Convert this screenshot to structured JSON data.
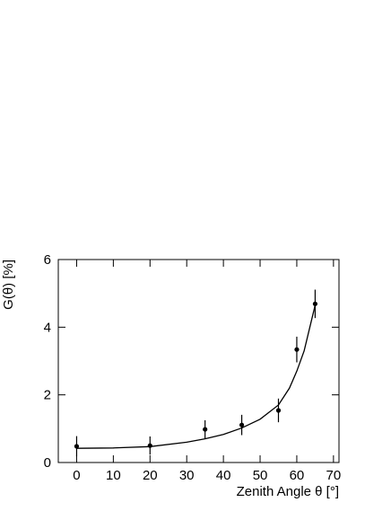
{
  "chart_data": {
    "type": "scatter",
    "xlabel": "Zenith Angle θ [°]",
    "ylabel": "G(θ) [%]",
    "x": [
      0,
      20,
      35,
      45,
      55,
      60,
      65
    ],
    "values": [
      0.48,
      0.5,
      0.98,
      1.11,
      1.54,
      3.34,
      4.69
    ],
    "errors": [
      0.3,
      0.27,
      0.27,
      0.3,
      0.35,
      0.38,
      0.42
    ],
    "color": "#000000",
    "fit": {
      "x": [
        0,
        10,
        20,
        30,
        35,
        40,
        45,
        50,
        55,
        58,
        60,
        62,
        64,
        65
      ],
      "values": [
        0.42,
        0.43,
        0.47,
        0.6,
        0.7,
        0.83,
        1.02,
        1.28,
        1.7,
        2.2,
        2.7,
        3.3,
        4.2,
        4.65
      ]
    },
    "xlim": [
      -5,
      71.5
    ],
    "ylim": [
      0,
      6
    ],
    "xticks": [
      0,
      10,
      20,
      30,
      40,
      50,
      60,
      70
    ],
    "yticks": [
      0,
      2,
      4,
      6
    ]
  }
}
